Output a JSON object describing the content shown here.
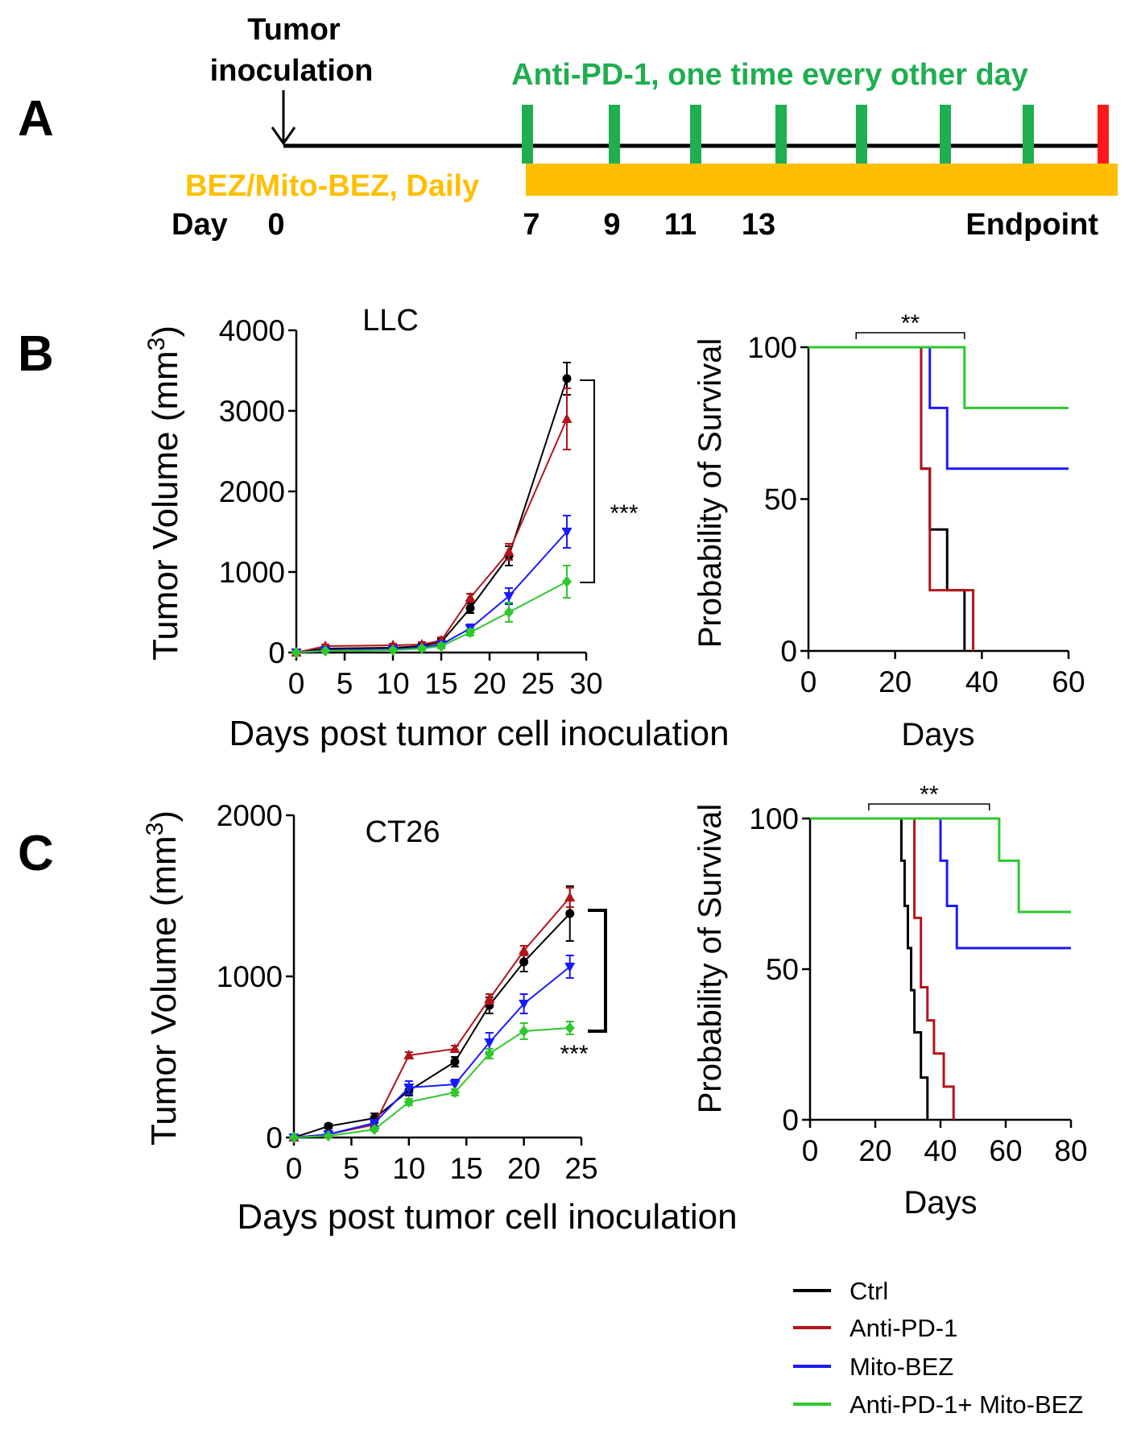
{
  "colors": {
    "black": "#000000",
    "ctrl": "#000000",
    "anti_pd1": "#b3141b",
    "mito_bez": "#1a1aff",
    "combo": "#2ec82e",
    "antipd1_marker": "#1fae50",
    "bez_bar": "#ffbf00",
    "endpoint": "#ff1a1a"
  },
  "panel_a": {
    "letter": "A",
    "tumor_label_line1": "Tumor",
    "tumor_label_line2": "inoculation",
    "antipd1_label": "Anti-PD-1, one time every other day",
    "bez_label": "BEZ/Mito-BEZ, Daily",
    "day_label": "Day",
    "day_ticks": [
      "0",
      "7",
      "9",
      "11",
      "13"
    ],
    "endpoint_label": "Endpoint"
  },
  "panel_b": {
    "letter": "B"
  },
  "panel_c": {
    "letter": "C"
  },
  "chart_data": [
    {
      "id": "llc-volume",
      "type": "line",
      "title": "LLC",
      "xlabel": "Days post tumor cell inoculation",
      "ylabel": "Tumor Volume (mm",
      "ylabel_sup": "3",
      "ylabel_close": ")",
      "xlim": [
        0,
        30
      ],
      "ylim": [
        0,
        4000
      ],
      "xticks": [
        0,
        5,
        10,
        15,
        20,
        25,
        30
      ],
      "yticks": [
        0,
        1000,
        2000,
        3000,
        4000
      ],
      "x": [
        0,
        3,
        10,
        13,
        15,
        18,
        22,
        28
      ],
      "significance": "***",
      "series": [
        {
          "name": "Ctrl",
          "values": [
            0,
            50,
            60,
            80,
            130,
            550,
            1200,
            3400
          ],
          "err": [
            20,
            20,
            20,
            30,
            40,
            60,
            120,
            200
          ]
        },
        {
          "name": "Anti-PD-1",
          "values": [
            0,
            80,
            90,
            100,
            150,
            680,
            1250,
            2900
          ],
          "err": [
            20,
            20,
            20,
            30,
            40,
            50,
            100,
            380
          ]
        },
        {
          "name": "Mito-BEZ",
          "values": [
            0,
            30,
            40,
            60,
            100,
            300,
            700,
            1500
          ],
          "err": [
            10,
            15,
            15,
            20,
            30,
            50,
            100,
            200
          ]
        },
        {
          "name": "Anti-PD-1+ Mito-BEZ",
          "values": [
            0,
            20,
            30,
            50,
            80,
            250,
            500,
            880
          ],
          "err": [
            10,
            10,
            15,
            20,
            30,
            40,
            120,
            200
          ]
        }
      ]
    },
    {
      "id": "llc-survival",
      "type": "line",
      "title": "",
      "xlabel": "Days",
      "ylabel": "Probability of Survival",
      "xlim": [
        0,
        60
      ],
      "ylim": [
        0,
        100
      ],
      "xticks": [
        0,
        20,
        40,
        60
      ],
      "yticks": [
        0,
        50,
        100
      ],
      "significance": "**",
      "sig_range": [
        11,
        36
      ],
      "series": [
        {
          "name": "Ctrl",
          "steps": [
            [
              0,
              100
            ],
            [
              26,
              60
            ],
            [
              28,
              40
            ],
            [
              32,
              20
            ],
            [
              36,
              0
            ]
          ]
        },
        {
          "name": "Anti-PD-1",
          "steps": [
            [
              0,
              100
            ],
            [
              26,
              60
            ],
            [
              28,
              20
            ],
            [
              36,
              20
            ],
            [
              38,
              0
            ]
          ]
        },
        {
          "name": "Mito-BEZ",
          "steps": [
            [
              0,
              100
            ],
            [
              28,
              80
            ],
            [
              32,
              60
            ],
            [
              60,
              60
            ]
          ]
        },
        {
          "name": "Anti-PD-1+ Mito-BEZ",
          "steps": [
            [
              0,
              100
            ],
            [
              36,
              80
            ],
            [
              60,
              80
            ]
          ]
        }
      ]
    },
    {
      "id": "ct26-volume",
      "type": "line",
      "title": "CT26",
      "xlabel": "Days post tumor cell inoculation",
      "ylabel": "Tumor Volume (mm",
      "ylabel_sup": "3",
      "ylabel_close": ")",
      "xlim": [
        0,
        25
      ],
      "ylim": [
        0,
        2000
      ],
      "xticks": [
        0,
        5,
        10,
        15,
        20,
        25
      ],
      "yticks": [
        0,
        1000,
        2000
      ],
      "x": [
        0,
        3,
        7,
        10,
        14,
        17,
        20,
        24
      ],
      "significance": "***",
      "series": [
        {
          "name": "Ctrl",
          "values": [
            0,
            70,
            120,
            290,
            470,
            820,
            1090,
            1390
          ],
          "err": [
            10,
            15,
            30,
            30,
            30,
            50,
            60,
            170
          ]
        },
        {
          "name": "Anti-PD-1",
          "values": [
            0,
            20,
            80,
            510,
            550,
            860,
            1160,
            1490
          ],
          "err": [
            10,
            10,
            20,
            20,
            20,
            30,
            30,
            60
          ]
        },
        {
          "name": "Mito-BEZ",
          "values": [
            0,
            20,
            90,
            310,
            330,
            590,
            830,
            1060
          ],
          "err": [
            10,
            10,
            20,
            40,
            30,
            60,
            60,
            70
          ]
        },
        {
          "name": "Anti-PD-1+ Mito-BEZ",
          "values": [
            0,
            10,
            50,
            220,
            280,
            520,
            660,
            680
          ],
          "err": [
            5,
            5,
            10,
            20,
            20,
            30,
            50,
            40
          ]
        }
      ]
    },
    {
      "id": "ct26-survival",
      "type": "line",
      "title": "",
      "xlabel": "Days",
      "ylabel": "Probability of Survival",
      "xlim": [
        0,
        80
      ],
      "ylim": [
        0,
        100
      ],
      "xticks": [
        0,
        20,
        40,
        60,
        80
      ],
      "yticks": [
        0,
        50,
        100
      ],
      "significance": "**",
      "sig_range": [
        18,
        55
      ],
      "series": [
        {
          "name": "Ctrl",
          "steps": [
            [
              0,
              100
            ],
            [
              28,
              86
            ],
            [
              29,
              71
            ],
            [
              30,
              57
            ],
            [
              31,
              43
            ],
            [
              32,
              29
            ],
            [
              34,
              14
            ],
            [
              36,
              0
            ]
          ]
        },
        {
          "name": "Anti-PD-1",
          "steps": [
            [
              0,
              100
            ],
            [
              32,
              67
            ],
            [
              34,
              44
            ],
            [
              36,
              33
            ],
            [
              38,
              22
            ],
            [
              41,
              11
            ],
            [
              44,
              0
            ]
          ]
        },
        {
          "name": "Mito-BEZ",
          "steps": [
            [
              0,
              100
            ],
            [
              40,
              86
            ],
            [
              42,
              71
            ],
            [
              45,
              57
            ],
            [
              80,
              57
            ]
          ]
        },
        {
          "name": "Anti-PD-1+ Mito-BEZ",
          "steps": [
            [
              0,
              100
            ],
            [
              58,
              86
            ],
            [
              64,
              69
            ],
            [
              80,
              69
            ]
          ]
        }
      ]
    }
  ],
  "legend": [
    {
      "label": "Ctrl",
      "color": "#000000"
    },
    {
      "label": "Anti-PD-1",
      "color": "#b3141b"
    },
    {
      "label": "Mito-BEZ",
      "color": "#1a1aff"
    },
    {
      "label": "Anti-PD-1+ Mito-BEZ",
      "color": "#2ec82e"
    }
  ]
}
